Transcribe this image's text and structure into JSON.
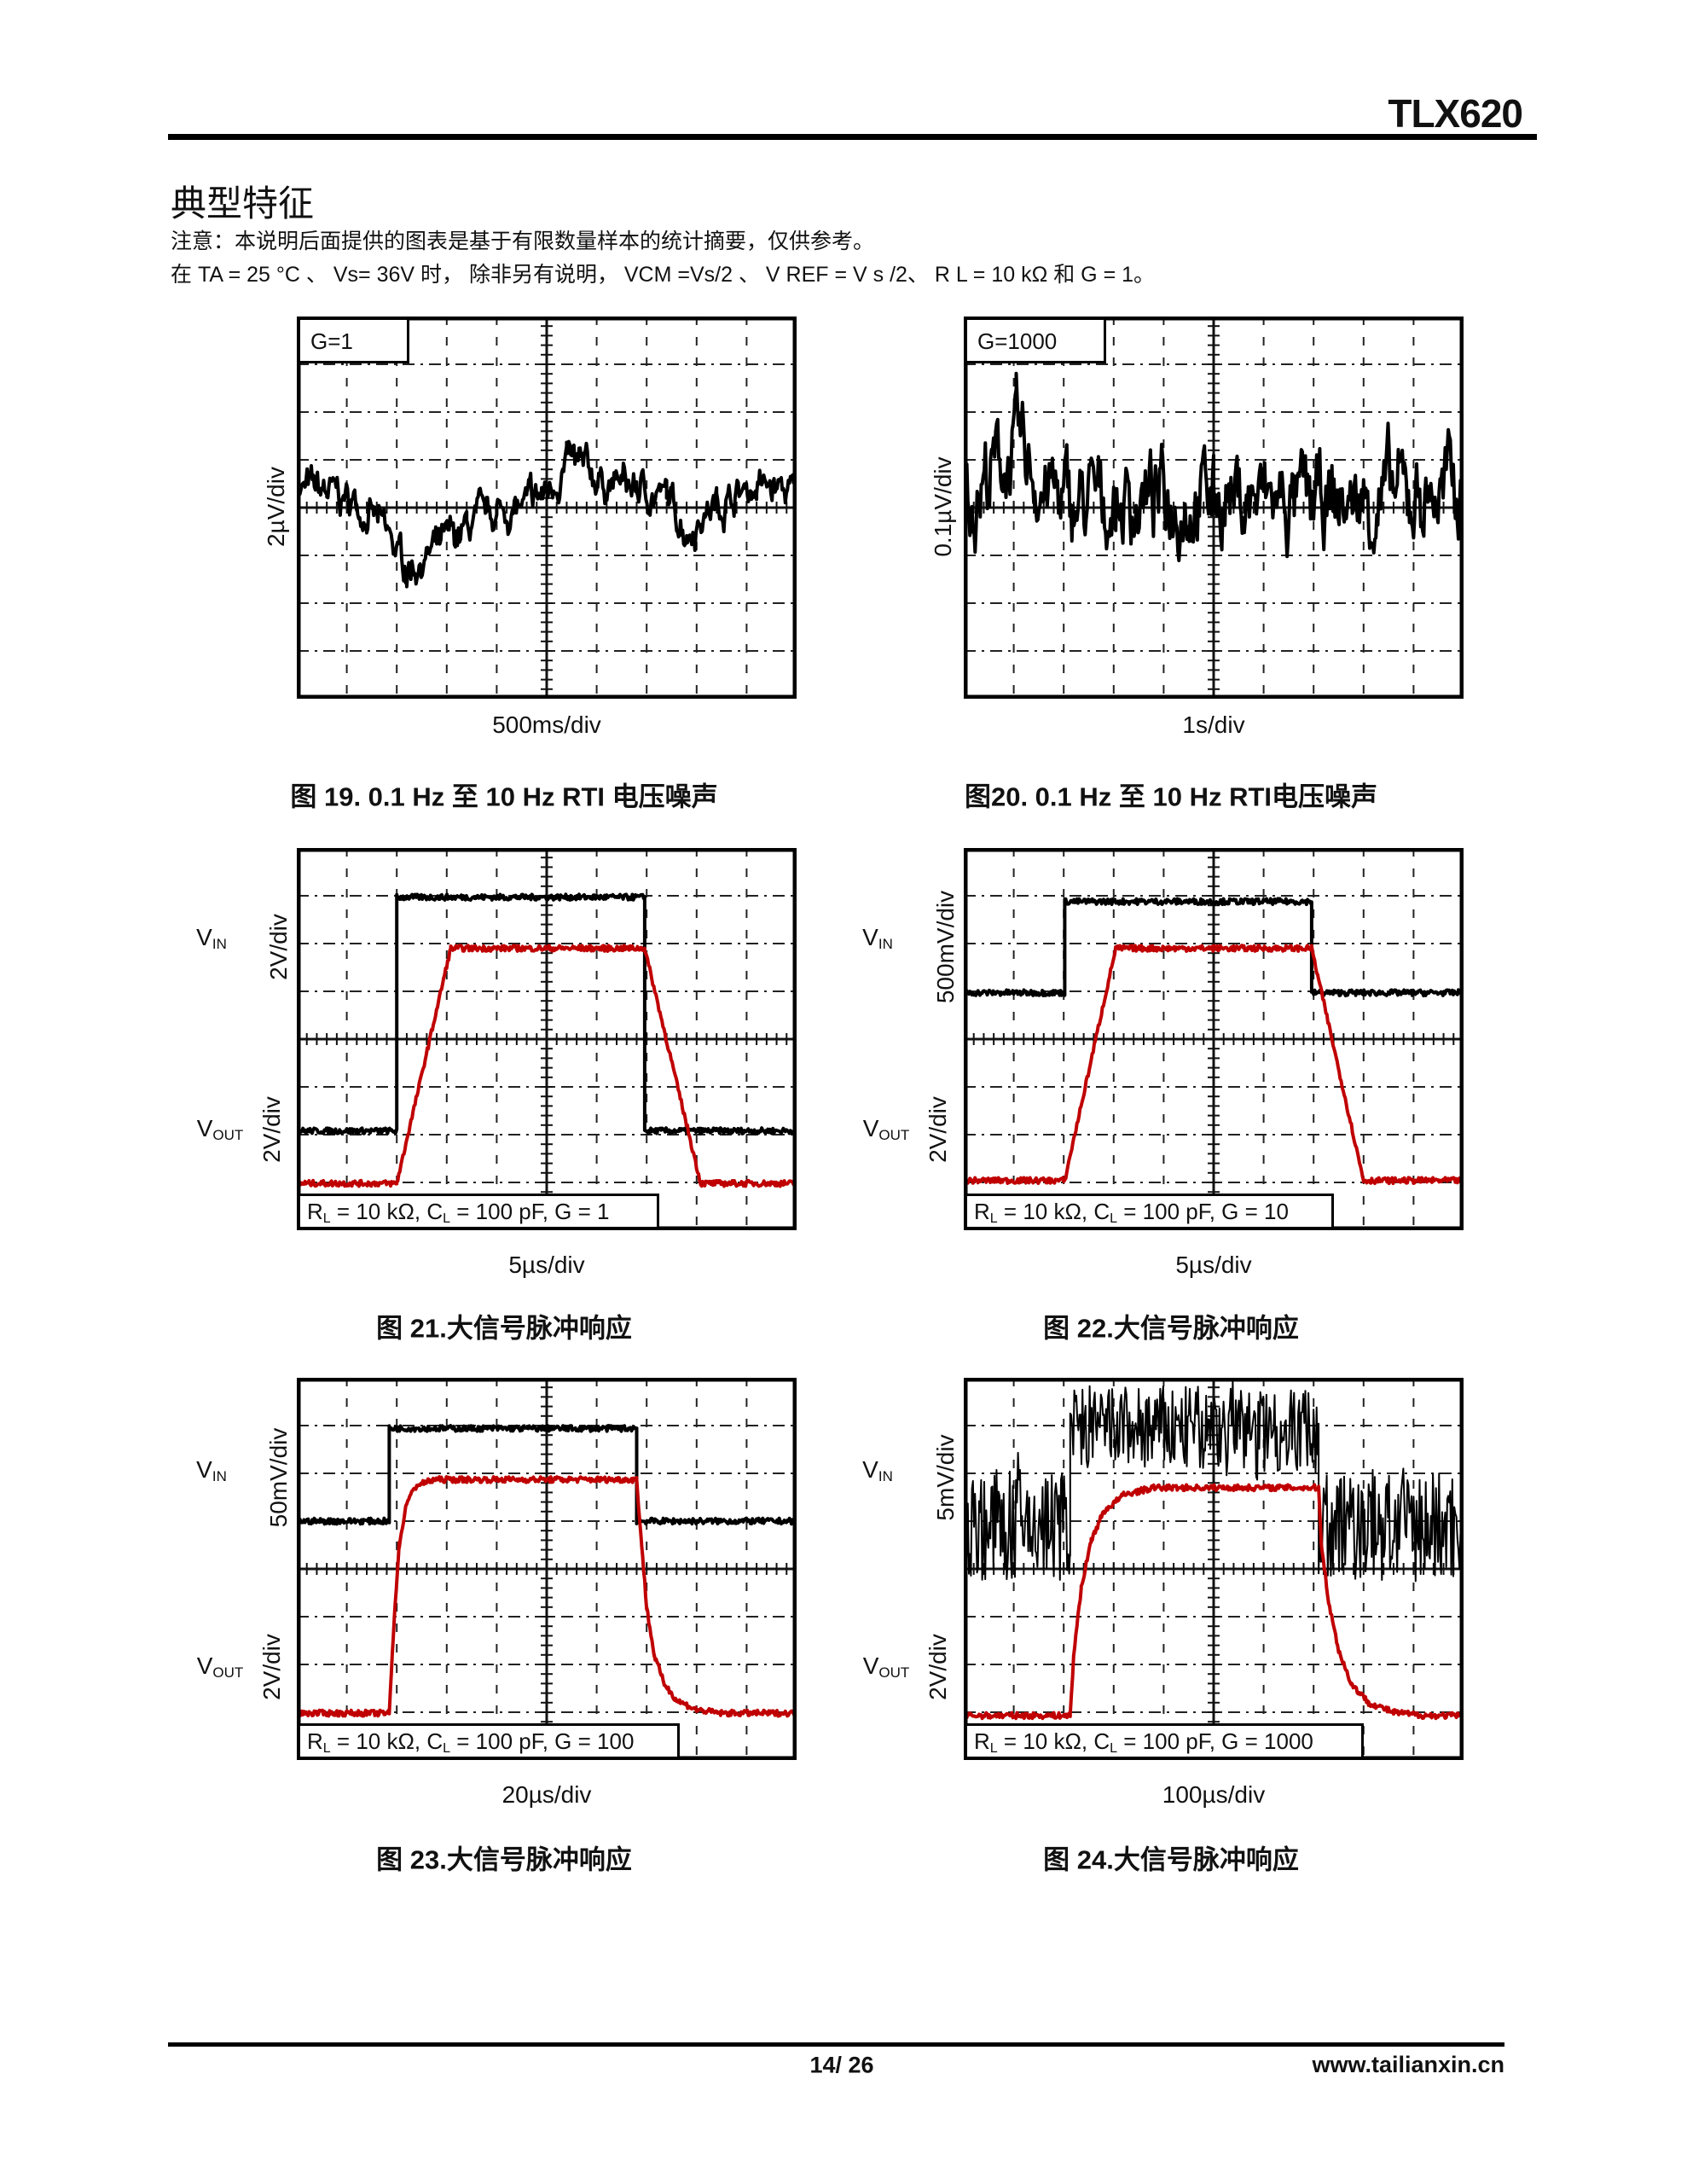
{
  "header": {
    "doc_title": "TLX620"
  },
  "section": {
    "title": "典型特征",
    "note": "注意：本说明后面提供的图表是基于有限数量样本的统计摘要，仅供参考。",
    "conditions": "在 TA = 25 °C 、 Vs= 36V 时， 除非另有说明， VCM =Vs/2 、 V REF = V s /2、 R L = 10 kΩ 和 G = 1。"
  },
  "labels": {
    "vin_main": "V",
    "vin_sub": "IN",
    "vout_main": "V",
    "vout_sub": "OUT",
    "rl_r": "R",
    "sub_l": "L",
    "rl_mid": " = 10 kΩ, C",
    "cl_g": " = 100 pF, G = "
  },
  "chart_data": [
    {
      "type": "line",
      "caption": "图 19. 0.1 Hz 至 10 Hz RTI 电压噪声",
      "annotation": "G=1",
      "xlabel": "500ms/div",
      "ylabel": "2µV/div",
      "grid": true,
      "xlim": [
        0,
        5
      ],
      "ylim": [
        -8,
        8
      ],
      "series": [
        {
          "color": "#000000",
          "points": [
            [
              0,
              0.8
            ],
            [
              0.3,
              0.6
            ],
            [
              0.6,
              0.2
            ],
            [
              0.8,
              -0.6
            ],
            [
              1.1,
              -2.5
            ],
            [
              1.4,
              -1.8
            ],
            [
              1.7,
              -0.9
            ],
            [
              2.0,
              -0.2
            ],
            [
              2.3,
              0
            ],
            [
              2.5,
              0.6
            ],
            [
              2.7,
              1.9
            ],
            [
              3.0,
              1.2
            ],
            [
              3.4,
              0.8
            ],
            [
              3.7,
              0.4
            ],
            [
              3.9,
              -0.9
            ],
            [
              4.2,
              0.2
            ],
            [
              4.6,
              0.9
            ],
            [
              5.0,
              0.6
            ]
          ]
        }
      ]
    },
    {
      "type": "line",
      "caption": "图20. 0.1 Hz 至 10 Hz RTI电压噪声",
      "annotation": "G=1000",
      "xlabel": "1s/div",
      "ylabel": "0.1µV/div",
      "grid": true,
      "xlim": [
        0,
        10
      ],
      "ylim": [
        -0.4,
        0.4
      ],
      "series": [
        {
          "color": "#000000",
          "points": [
            [
              0,
              0.02
            ],
            [
              1.05,
              0.12
            ],
            [
              2,
              0.0
            ],
            [
              5,
              0.03
            ],
            [
              7,
              0.0
            ],
            [
              10,
              0.04
            ]
          ]
        }
      ]
    },
    {
      "type": "line",
      "caption": "图 21.大信号脉冲响应",
      "annotation": "G = 1",
      "xlabel": "5µs/div",
      "ylabel_in": "2V/div",
      "ylabel_out": "2V/div",
      "grid": true,
      "xlim": [
        0,
        50
      ],
      "ylim": [
        0,
        8
      ],
      "y_unit": "div",
      "series": [
        {
          "name": "VIN",
          "color": "#000000",
          "points": [
            [
              0,
              2.08
            ],
            [
              10,
              2.08
            ],
            [
              10,
              6.97
            ],
            [
              34.8,
              6.97
            ],
            [
              34.8,
              2.08
            ],
            [
              50,
              2.08
            ]
          ]
        },
        {
          "name": "VOUT",
          "color": "#c00000",
          "points": [
            [
              0,
              0.98
            ],
            [
              10,
              0.98
            ],
            [
              15.4,
              5.9
            ],
            [
              34.8,
              5.9
            ],
            [
              40.4,
              0.98
            ],
            [
              50,
              0.98
            ]
          ]
        }
      ]
    },
    {
      "type": "line",
      "caption": "图 22.大信号脉冲响应",
      "annotation": "G = 10",
      "xlabel": "5µs/div",
      "ylabel_in": "500mV/div",
      "ylabel_out": "2V/div",
      "grid": true,
      "xlim": [
        0,
        50
      ],
      "ylim": [
        0,
        8
      ],
      "y_unit": "div",
      "series": [
        {
          "name": "VIN",
          "color": "#000000",
          "points": [
            [
              0,
              4.97
            ],
            [
              10.1,
              4.97
            ],
            [
              10.1,
              6.88
            ],
            [
              34.8,
              6.88
            ],
            [
              34.8,
              4.97
            ],
            [
              50,
              4.97
            ]
          ]
        },
        {
          "name": "VOUT",
          "color": "#c00000",
          "points": [
            [
              0,
              1.04
            ],
            [
              10.1,
              1.04
            ],
            [
              15.2,
              5.9
            ],
            [
              34.8,
              5.9
            ],
            [
              40,
              1.04
            ],
            [
              50,
              1.04
            ]
          ]
        }
      ]
    },
    {
      "type": "line",
      "caption": "图 23.大信号脉冲响应",
      "annotation": "G = 100",
      "xlabel": "20µs/div",
      "ylabel_in": "50mV/div",
      "ylabel_out": "2V/div",
      "grid": true,
      "xlim": [
        0,
        200
      ],
      "ylim": [
        0,
        8
      ],
      "y_unit": "div",
      "series": [
        {
          "name": "VIN",
          "color": "#000000",
          "points": [
            [
              0,
              5
            ],
            [
              37,
              5
            ],
            [
              37,
              6.94
            ],
            [
              136,
              6.94
            ],
            [
              136,
              5
            ],
            [
              200,
              5
            ]
          ]
        },
        {
          "name": "VOUT",
          "color": "#c00000",
          "points": [
            [
              0,
              0.98
            ],
            [
              37,
              0.98
            ],
            [
              39,
              3.0
            ],
            [
              41,
              4.5
            ],
            [
              44,
              5.4
            ],
            [
              48,
              5.75
            ],
            [
              55,
              5.87
            ],
            [
              136,
              5.87
            ],
            [
              138,
              4.5
            ],
            [
              140,
              3.2
            ],
            [
              143,
              2.2
            ],
            [
              147,
              1.6
            ],
            [
              152,
              1.25
            ],
            [
              160,
              1.05
            ],
            [
              170,
              0.98
            ],
            [
              200,
              0.98
            ]
          ]
        }
      ]
    },
    {
      "type": "line",
      "caption": "图 24.大信号脉冲响应",
      "annotation": "G = 1000",
      "xlabel": "100µs/div",
      "ylabel_in": "5mV/div",
      "ylabel_out": "2V/div",
      "grid": true,
      "xlim": [
        0,
        1000
      ],
      "ylim": [
        0,
        8
      ],
      "y_unit": "div",
      "series": [
        {
          "name": "VIN",
          "color": "#000000",
          "points": [
            [
              0,
              4.9
            ],
            [
              213,
              4.9
            ],
            [
              213,
              6.94
            ],
            [
              710,
              6.94
            ],
            [
              710,
              4.9
            ],
            [
              1000,
              4.9
            ]
          ]
        },
        {
          "name": "VOUT",
          "color": "#c00000",
          "points": [
            [
              0,
              0.93
            ],
            [
              213,
              0.93
            ],
            [
              220,
              2.2
            ],
            [
              235,
              3.6
            ],
            [
              255,
              4.6
            ],
            [
              280,
              5.2
            ],
            [
              320,
              5.55
            ],
            [
              380,
              5.7
            ],
            [
              710,
              5.7
            ],
            [
              715,
              4.6
            ],
            [
              730,
              3.3
            ],
            [
              750,
              2.3
            ],
            [
              775,
              1.6
            ],
            [
              810,
              1.2
            ],
            [
              860,
              1.0
            ],
            [
              920,
              0.93
            ],
            [
              1000,
              0.93
            ]
          ]
        }
      ]
    }
  ],
  "footer": {
    "page": "14/ 26",
    "website": "www.tailianxin.cn"
  }
}
